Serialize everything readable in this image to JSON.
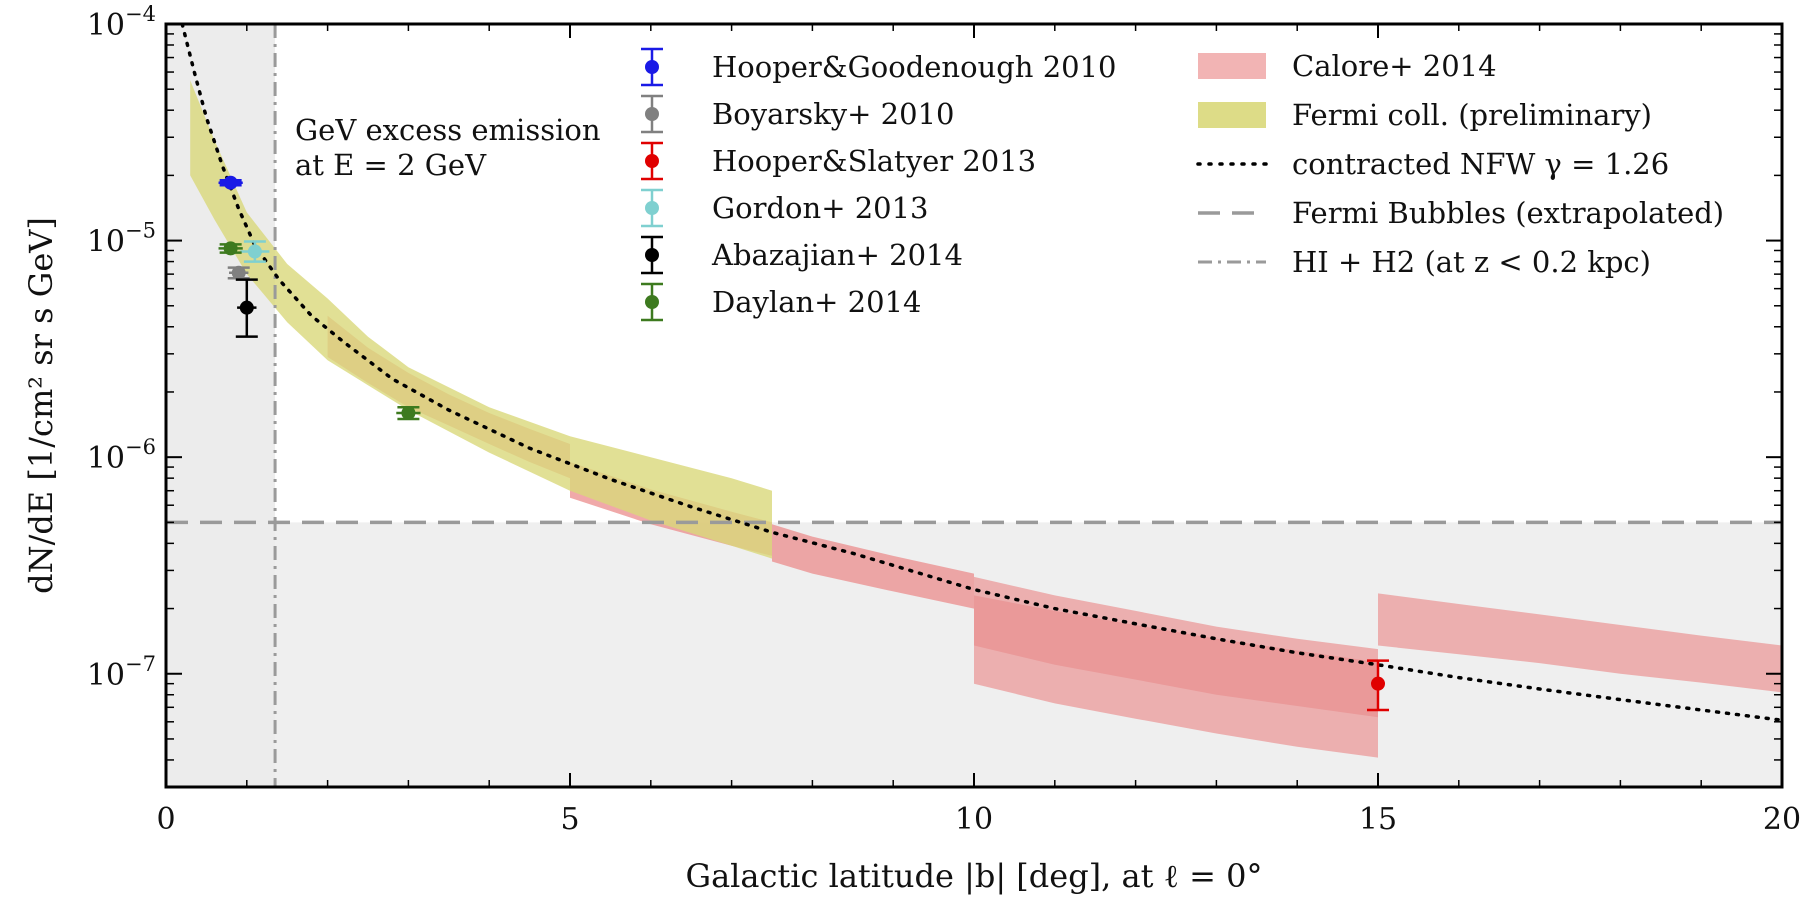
{
  "chart_data": {
    "type": "scatter",
    "xlabel": "Galactic latitude |b| [deg], at ℓ = 0°",
    "ylabel": "dN/dE [1/cm² sr s GeV]",
    "xlim": [
      0,
      20
    ],
    "ylim": [
      3e-08,
      0.0001
    ],
    "y_scale": "log",
    "grid": false,
    "legend": "top",
    "x_ticks": [
      0,
      5,
      10,
      15,
      20
    ],
    "x_tick_labels": [
      "0",
      "5",
      "10",
      "15",
      "20"
    ],
    "y_ticks": [
      1e-07,
      1e-06,
      1e-05,
      0.0001
    ],
    "y_tick_labels": [
      {
        "base": "10",
        "exp": "−7"
      },
      {
        "base": "10",
        "exp": "−6"
      },
      {
        "base": "10",
        "exp": "−5"
      },
      {
        "base": "10",
        "exp": "−4"
      }
    ],
    "annotation": {
      "line1": "GeV excess emission",
      "line2": "at E = 2 GeV"
    },
    "data_points": [
      {
        "name": "Hooper&Goodenough 2010",
        "color": "#1a1ae6",
        "x": 0.8,
        "y": 1.85e-05,
        "xerr": 0.15,
        "ylow": 1.8e-05,
        "yhigh": 1.9e-05
      },
      {
        "name": "Boyarsky+ 2010",
        "color": "#808080",
        "x": 0.9,
        "y": 7.1e-06,
        "xerr": 0.12,
        "ylow": 6.7e-06,
        "yhigh": 7.5e-06
      },
      {
        "name": "Hooper&Slatyer 2013",
        "color": "#e00000",
        "x": 15.0,
        "y": 9e-08,
        "xerr": 0,
        "ylow": 6.8e-08,
        "yhigh": 1.15e-07
      },
      {
        "name": "Gordon+ 2013",
        "color": "#7fd0d0",
        "x": 1.1,
        "y": 8.9e-06,
        "xerr": 0.18,
        "ylow": 8e-06,
        "yhigh": 9.9e-06
      },
      {
        "name": "Abazajian+ 2014",
        "color": "#000000",
        "x": 1.0,
        "y": 4.9e-06,
        "xerr": 0.12,
        "ylow": 3.6e-06,
        "yhigh": 6.6e-06
      },
      {
        "name": "Daylan+ 2014",
        "color": "#3d7a1f",
        "x": 0.8,
        "y": 9.2e-06,
        "xerr": 0.15,
        "ylow": 8.8e-06,
        "yhigh": 9.6e-06
      },
      {
        "name": "Daylan+ 2014",
        "color": "#3d7a1f",
        "x": 3.0,
        "y": 1.6e-06,
        "xerr": 0.15,
        "ylow": 1.5e-06,
        "yhigh": 1.7e-06
      }
    ],
    "bands": [
      {
        "name": "Calore+ 2014",
        "color": "#eb8c8c",
        "x": [
          2,
          2.5,
          3,
          3.5,
          4,
          4.5,
          5
        ],
        "low": [
          2.9e-06,
          2.2e-06,
          1.7e-06,
          1.4e-06,
          1.15e-06,
          9.5e-07,
          8e-07
        ],
        "high": [
          4.5e-06,
          3.2e-06,
          2.45e-06,
          1.95e-06,
          1.6e-06,
          1.35e-06,
          1.15e-06
        ]
      },
      {
        "name": "Calore+ 2014",
        "color": "#eb8c8c",
        "x": [
          5,
          6,
          7,
          7.5
        ],
        "low": [
          6.5e-07,
          4.9e-07,
          3.9e-07,
          3.5e-07
        ],
        "high": [
          9.5e-07,
          7.1e-07,
          5.6e-07,
          5e-07
        ]
      },
      {
        "name": "Calore+ 2014",
        "color": "#eb8c8c",
        "x": [
          7.5,
          8,
          9,
          10
        ],
        "low": [
          3.3e-07,
          2.9e-07,
          2.4e-07,
          2e-07
        ],
        "high": [
          4.9e-07,
          4.3e-07,
          3.5e-07,
          2.9e-07
        ]
      },
      {
        "name": "Calore+ 2014",
        "color": "#e27a7a",
        "x": [
          10,
          11,
          12,
          13,
          14,
          15
        ],
        "low": [
          1.35e-07,
          1.1e-07,
          9.4e-08,
          8e-08,
          7.1e-08,
          6.3e-08
        ],
        "high": [
          2.3e-07,
          1.95e-07,
          1.68e-07,
          1.45e-07,
          1.28e-07,
          1.13e-07
        ]
      },
      {
        "name": "Calore+ 2014",
        "color": "#eb9a9a",
        "x": [
          10,
          11,
          12,
          13,
          14,
          15
        ],
        "low": [
          9e-08,
          7.3e-08,
          6.2e-08,
          5.3e-08,
          4.6e-08,
          4.1e-08
        ],
        "high": [
          2.8e-07,
          2.3e-07,
          1.95e-07,
          1.65e-07,
          1.45e-07,
          1.3e-07
        ]
      },
      {
        "name": "Calore+ 2014",
        "color": "#eb9a9a",
        "x": [
          15,
          16,
          17,
          18,
          19,
          20
        ],
        "low": [
          1.35e-07,
          1.23e-07,
          1.12e-07,
          1e-07,
          9.1e-08,
          8.2e-08
        ],
        "high": [
          2.35e-07,
          2.1e-07,
          1.88e-07,
          1.68e-07,
          1.5e-07,
          1.35e-07
        ]
      },
      {
        "name": "Fermi coll. (preliminary)",
        "color": "#d9d87a",
        "x": [
          0.3,
          0.6,
          1,
          1.5,
          2,
          2.5,
          3,
          4,
          5,
          6,
          7,
          7.5
        ],
        "low": [
          2e-05,
          1.25e-05,
          7e-06,
          4.2e-06,
          2.8e-06,
          2.15e-06,
          1.65e-06,
          1.05e-06,
          7e-07,
          5.1e-07,
          3.9e-07,
          3.4e-07
        ],
        "high": [
          5.5e-05,
          2.9e-05,
          1.35e-05,
          7.8e-06,
          5.4e-06,
          3.6e-06,
          2.6e-06,
          1.7e-06,
          1.25e-06,
          1e-06,
          8e-07,
          7e-07
        ]
      }
    ],
    "nfw_curve": {
      "x": [
        0.2,
        0.35,
        0.5,
        0.7,
        0.9,
        1.1,
        1.4,
        1.8,
        2.2,
        2.8,
        3.5,
        4.5,
        5.5,
        6.5,
        7.5,
        8.5,
        10,
        11,
        12,
        13,
        14,
        15,
        16,
        17,
        18,
        19,
        20
      ],
      "y": [
        0.0001,
        6e-05,
        3.7e-05,
        2.2e-05,
        1.4e-05,
        9.5e-06,
        6.6e-06,
        4.5e-06,
        3.4e-06,
        2.3e-06,
        1.65e-06,
        1.1e-06,
        7.9e-07,
        5.9e-07,
        4.5e-07,
        3.6e-07,
        2.45e-07,
        2e-07,
        1.7e-07,
        1.45e-07,
        1.25e-07,
        1.1e-07,
        9.6e-08,
        8.5e-08,
        7.6e-08,
        6.8e-08,
        6.1e-08
      ]
    },
    "fermi_bubbles_level": 5e-07,
    "hi_h2_x": 1.35,
    "legend_entries": {
      "points": [
        "Hooper&Goodenough 2010",
        "Boyarsky+ 2010",
        "Hooper&Slatyer 2013",
        "Gordon+ 2013",
        "Abazajian+ 2014",
        "Daylan+ 2014"
      ],
      "point_colors": [
        "#1a1ae6",
        "#808080",
        "#e00000",
        "#7fd0d0",
        "#000000",
        "#3d7a1f"
      ],
      "calore": "Calore+ 2014",
      "fermi": "Fermi coll. (preliminary)",
      "nfw": "contracted NFW γ = 1.26",
      "bubbles": "Fermi Bubbles (extrapolated)",
      "hi_h2": "HI + H2 (at z < 0.2 kpc)"
    },
    "colors": {
      "calore": "#eb8c8c",
      "fermi": "#d9d87a",
      "shade": "#ececec",
      "dashed": "#9a9a9a"
    }
  }
}
